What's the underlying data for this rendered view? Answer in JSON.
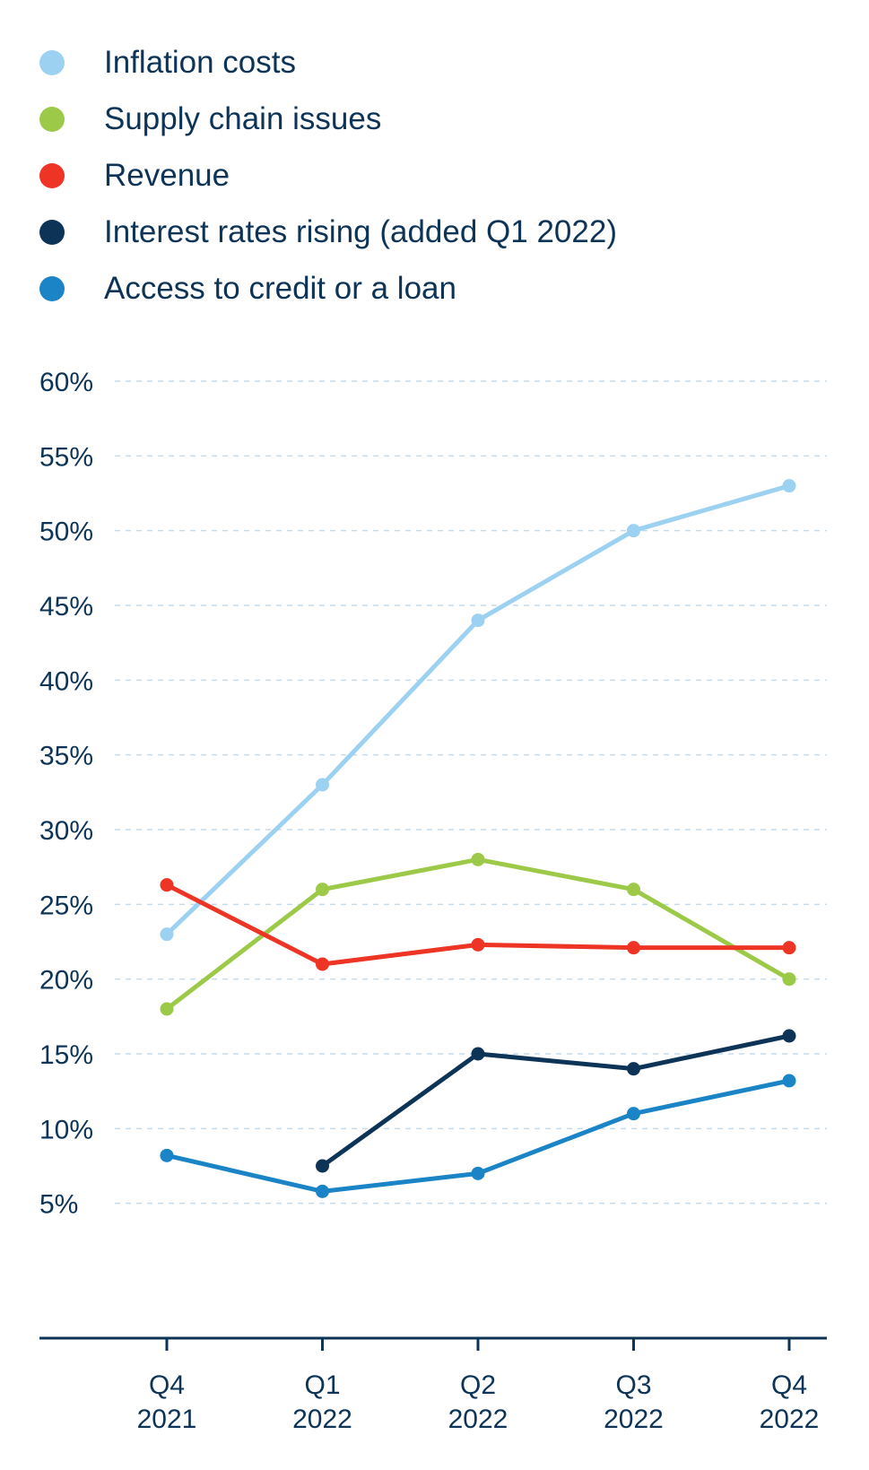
{
  "chart_data": {
    "type": "line",
    "title": "",
    "xlabel": "",
    "ylabel": "",
    "categories": [
      [
        "Q4",
        "2021"
      ],
      [
        "Q1",
        "2022"
      ],
      [
        "Q2",
        "2022"
      ],
      [
        "Q3",
        "2022"
      ],
      [
        "Q4",
        "2022"
      ]
    ],
    "yticks": [
      "5%",
      "10%",
      "15%",
      "20%",
      "25%",
      "30%",
      "35%",
      "40%",
      "45%",
      "50%",
      "55%",
      "60%"
    ],
    "ylim": [
      0,
      60
    ],
    "grid": true,
    "legend_position": "top-left",
    "series": [
      {
        "name": "Inflation costs",
        "color": "#9dd1f1",
        "values": [
          23,
          33,
          44,
          50,
          53
        ]
      },
      {
        "name": "Supply chain issues",
        "color": "#9dc948",
        "values": [
          18,
          26,
          28,
          26,
          20
        ]
      },
      {
        "name": "Revenue",
        "color": "#ee3425",
        "values": [
          26.3,
          21,
          22.3,
          22.1,
          22.1
        ]
      },
      {
        "name": "Interest rates rising (added Q1 2022)",
        "color": "#0d3457",
        "values": [
          null,
          7.5,
          15,
          14,
          16.2
        ]
      },
      {
        "name": "Access to credit or a loan",
        "color": "#1a84c6",
        "values": [
          8.2,
          5.8,
          7,
          11,
          13.2
        ]
      }
    ]
  }
}
